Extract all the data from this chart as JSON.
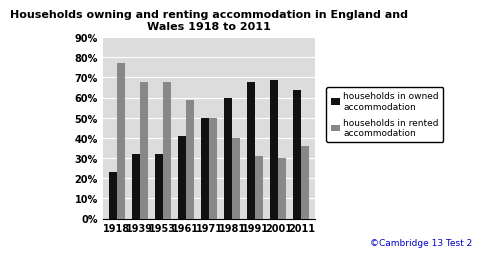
{
  "title": "Households owning and renting accommodation in England and\nWales 1918 to 2011",
  "years": [
    "1918",
    "1939",
    "1953",
    "1961",
    "1971",
    "1981",
    "1991",
    "2001",
    "2011"
  ],
  "owned": [
    23,
    32,
    32,
    41,
    50,
    60,
    68,
    69,
    64
  ],
  "rented": [
    77,
    68,
    68,
    59,
    50,
    40,
    31,
    30,
    36
  ],
  "owned_color": "#111111",
  "rented_color": "#888888",
  "ylim": [
    0,
    90
  ],
  "yticks": [
    0,
    10,
    20,
    30,
    40,
    50,
    60,
    70,
    80,
    90
  ],
  "legend_owned": "households in owned\naccommodation",
  "legend_rented": "households in rented\naccommodation",
  "copyright": "©Cambridge 13 Test 2",
  "title_fontsize": 8.0,
  "tick_fontsize": 7.0,
  "legend_fontsize": 6.5
}
